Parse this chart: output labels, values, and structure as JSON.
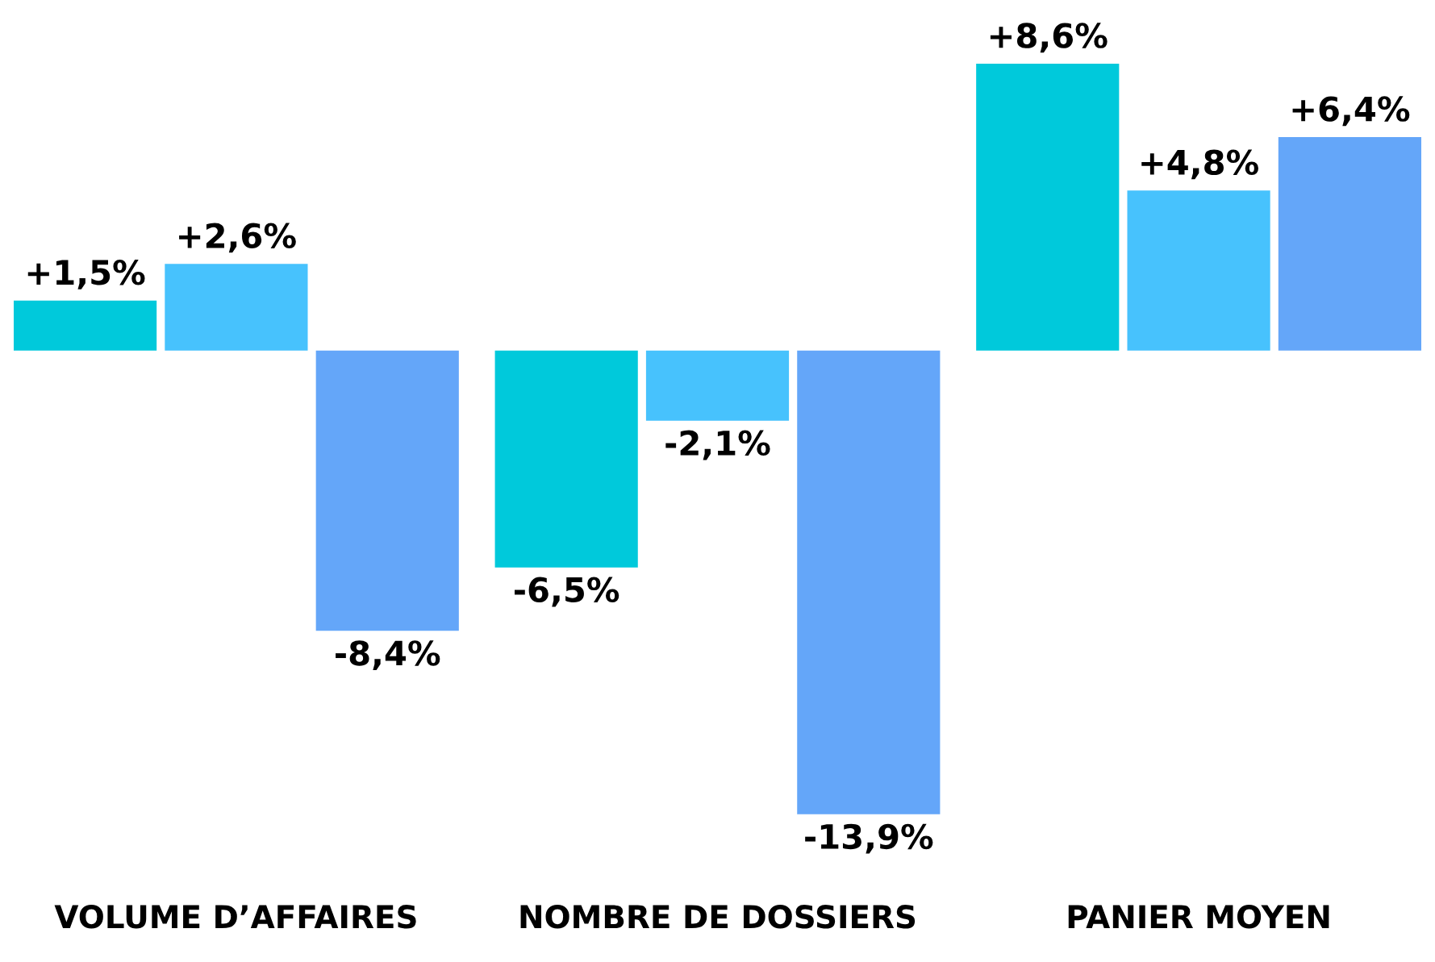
{
  "chart_data": {
    "type": "bar",
    "categories": [
      "VOLUME D’AFFAIRES",
      "NOMBRE DE DOSSIERS",
      "PANIER MOYEN"
    ],
    "series": [
      {
        "color": "#00c9db",
        "values": [
          1.5,
          -6.5,
          8.6
        ],
        "value_labels": [
          "+1,5%",
          "-6,5%",
          "+8,6%"
        ]
      },
      {
        "color": "#47c2fd",
        "values": [
          2.6,
          -2.1,
          4.8
        ],
        "value_labels": [
          "+2,6%",
          "-2,1%",
          "+4,8%"
        ]
      },
      {
        "color": "#64a6f9",
        "values": [
          -8.4,
          -13.9,
          6.4
        ],
        "value_labels": [
          "-8,4%",
          "-13,9%",
          "+6,4%"
        ]
      }
    ],
    "grid": false
  }
}
